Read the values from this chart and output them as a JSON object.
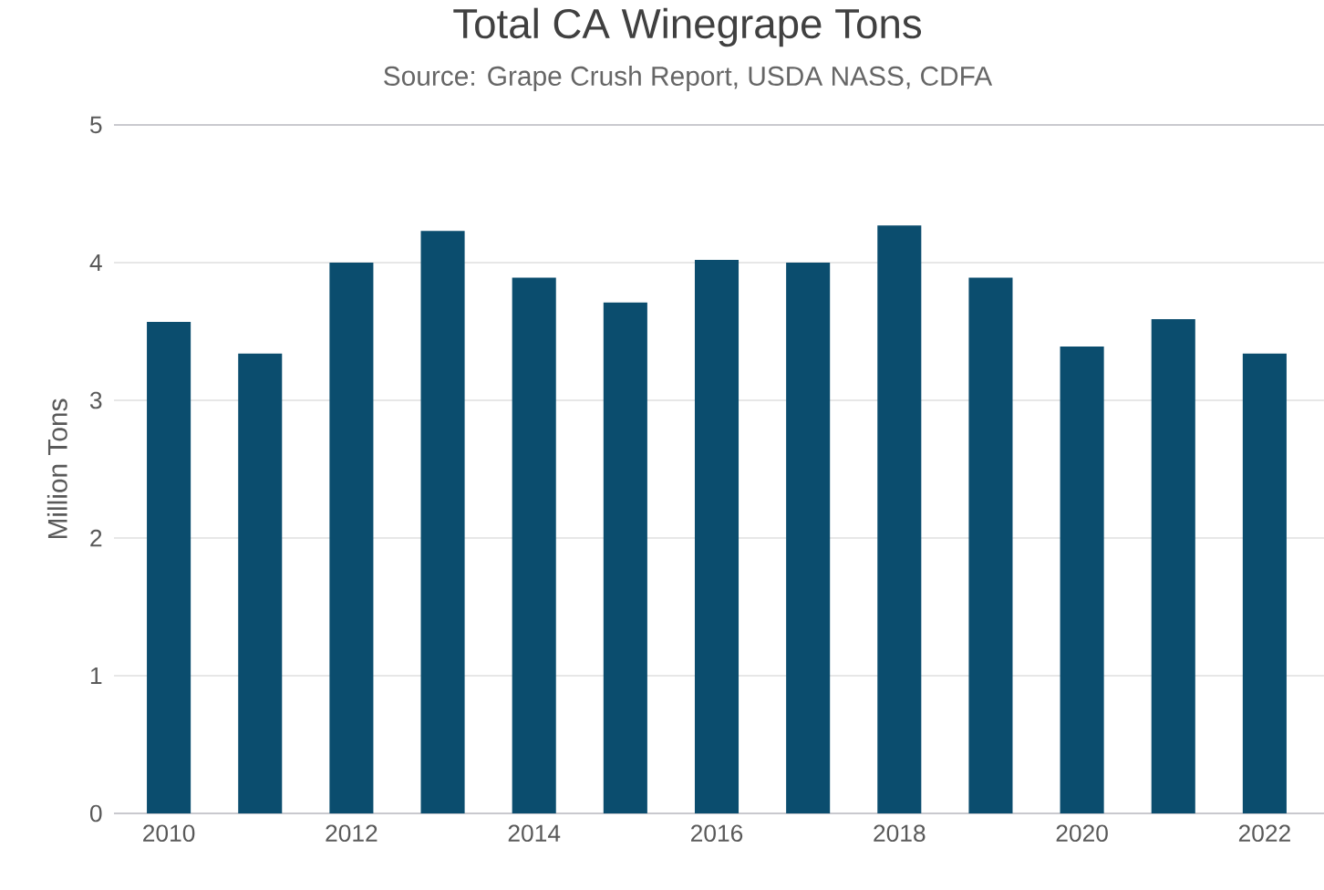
{
  "chart_data": {
    "type": "bar",
    "title": "Total CA Winegrape Tons",
    "subtitle": "Source: Grape Crush Report, USDA NASS, CDFA",
    "ylabel": "Million Tons",
    "x": [
      2010,
      2011,
      2012,
      2013,
      2014,
      2015,
      2016,
      2017,
      2018,
      2019,
      2020,
      2021,
      2022
    ],
    "values": [
      3.57,
      3.34,
      4.0,
      4.23,
      3.89,
      3.71,
      4.02,
      4.0,
      4.27,
      3.89,
      3.39,
      3.59,
      3.34
    ],
    "color": "#0b4d6e",
    "xlim": [
      2009.4,
      2022.65
    ],
    "xticks": [
      2010,
      2012,
      2014,
      2016,
      2018,
      2020,
      2022
    ],
    "ylim": [
      0,
      5
    ],
    "yticks": [
      0,
      1,
      2,
      3,
      4,
      5
    ],
    "grid": "y"
  }
}
